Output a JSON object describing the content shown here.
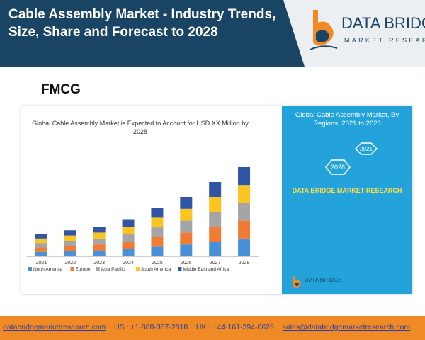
{
  "header": {
    "title": "Cable Assembly Market - Industry Trends, Size, Share and Forecast to 2028",
    "logo_name": "DATA BRIDGE",
    "logo_tagline": "MARKET RESEARCH"
  },
  "section_label": "FMCG",
  "chart_data": {
    "type": "bar",
    "stacked": true,
    "title": "Global Cable Assembly Market is Expected to Account for USD XX Million by 2028",
    "xlabel": "",
    "ylabel": "",
    "categories": [
      "2021",
      "2022",
      "2023",
      "2024",
      "2025",
      "2026",
      "2027",
      "2028"
    ],
    "series": [
      {
        "name": "North America",
        "color": "#4a90d9",
        "values": [
          6,
          7,
          8,
          10,
          13,
          16,
          20,
          24
        ]
      },
      {
        "name": "Europe",
        "color": "#ef7b35",
        "values": [
          6,
          7,
          8,
          10,
          13,
          16,
          20,
          24
        ]
      },
      {
        "name": "Asia Pacific",
        "color": "#a5a5a5",
        "values": [
          6,
          7,
          8,
          10,
          13,
          16,
          20,
          24
        ]
      },
      {
        "name": "South America",
        "color": "#fbc41f",
        "values": [
          6,
          7,
          8,
          10,
          13,
          16,
          20,
          24
        ]
      },
      {
        "name": "Middle East and Africa",
        "color": "#2f55a4",
        "values": [
          6,
          7,
          8,
          10,
          13,
          16,
          20,
          24
        ]
      }
    ],
    "ylim": [
      0,
      140
    ],
    "grid": false,
    "legend_position": "bottom"
  },
  "side": {
    "title": "Global Cable Assembly Market, By Regions, 2021 to 2028",
    "hex_a": "2021",
    "hex_b": "2028",
    "brand": "DATA BRIDGE MARKET RESEARCH"
  },
  "mini_logo": "DATA BRIDGE",
  "footer": {
    "website": "databridgemarketresearch.com",
    "us": "US : +1-888-387-2818",
    "uk": "UK : +44-161-394-0625",
    "email": "sales@databridgemarketresearch.com"
  },
  "colors": {
    "header_bg": "#1a4464",
    "accent": "#23a3d9",
    "footer_bg": "#f08a24"
  }
}
